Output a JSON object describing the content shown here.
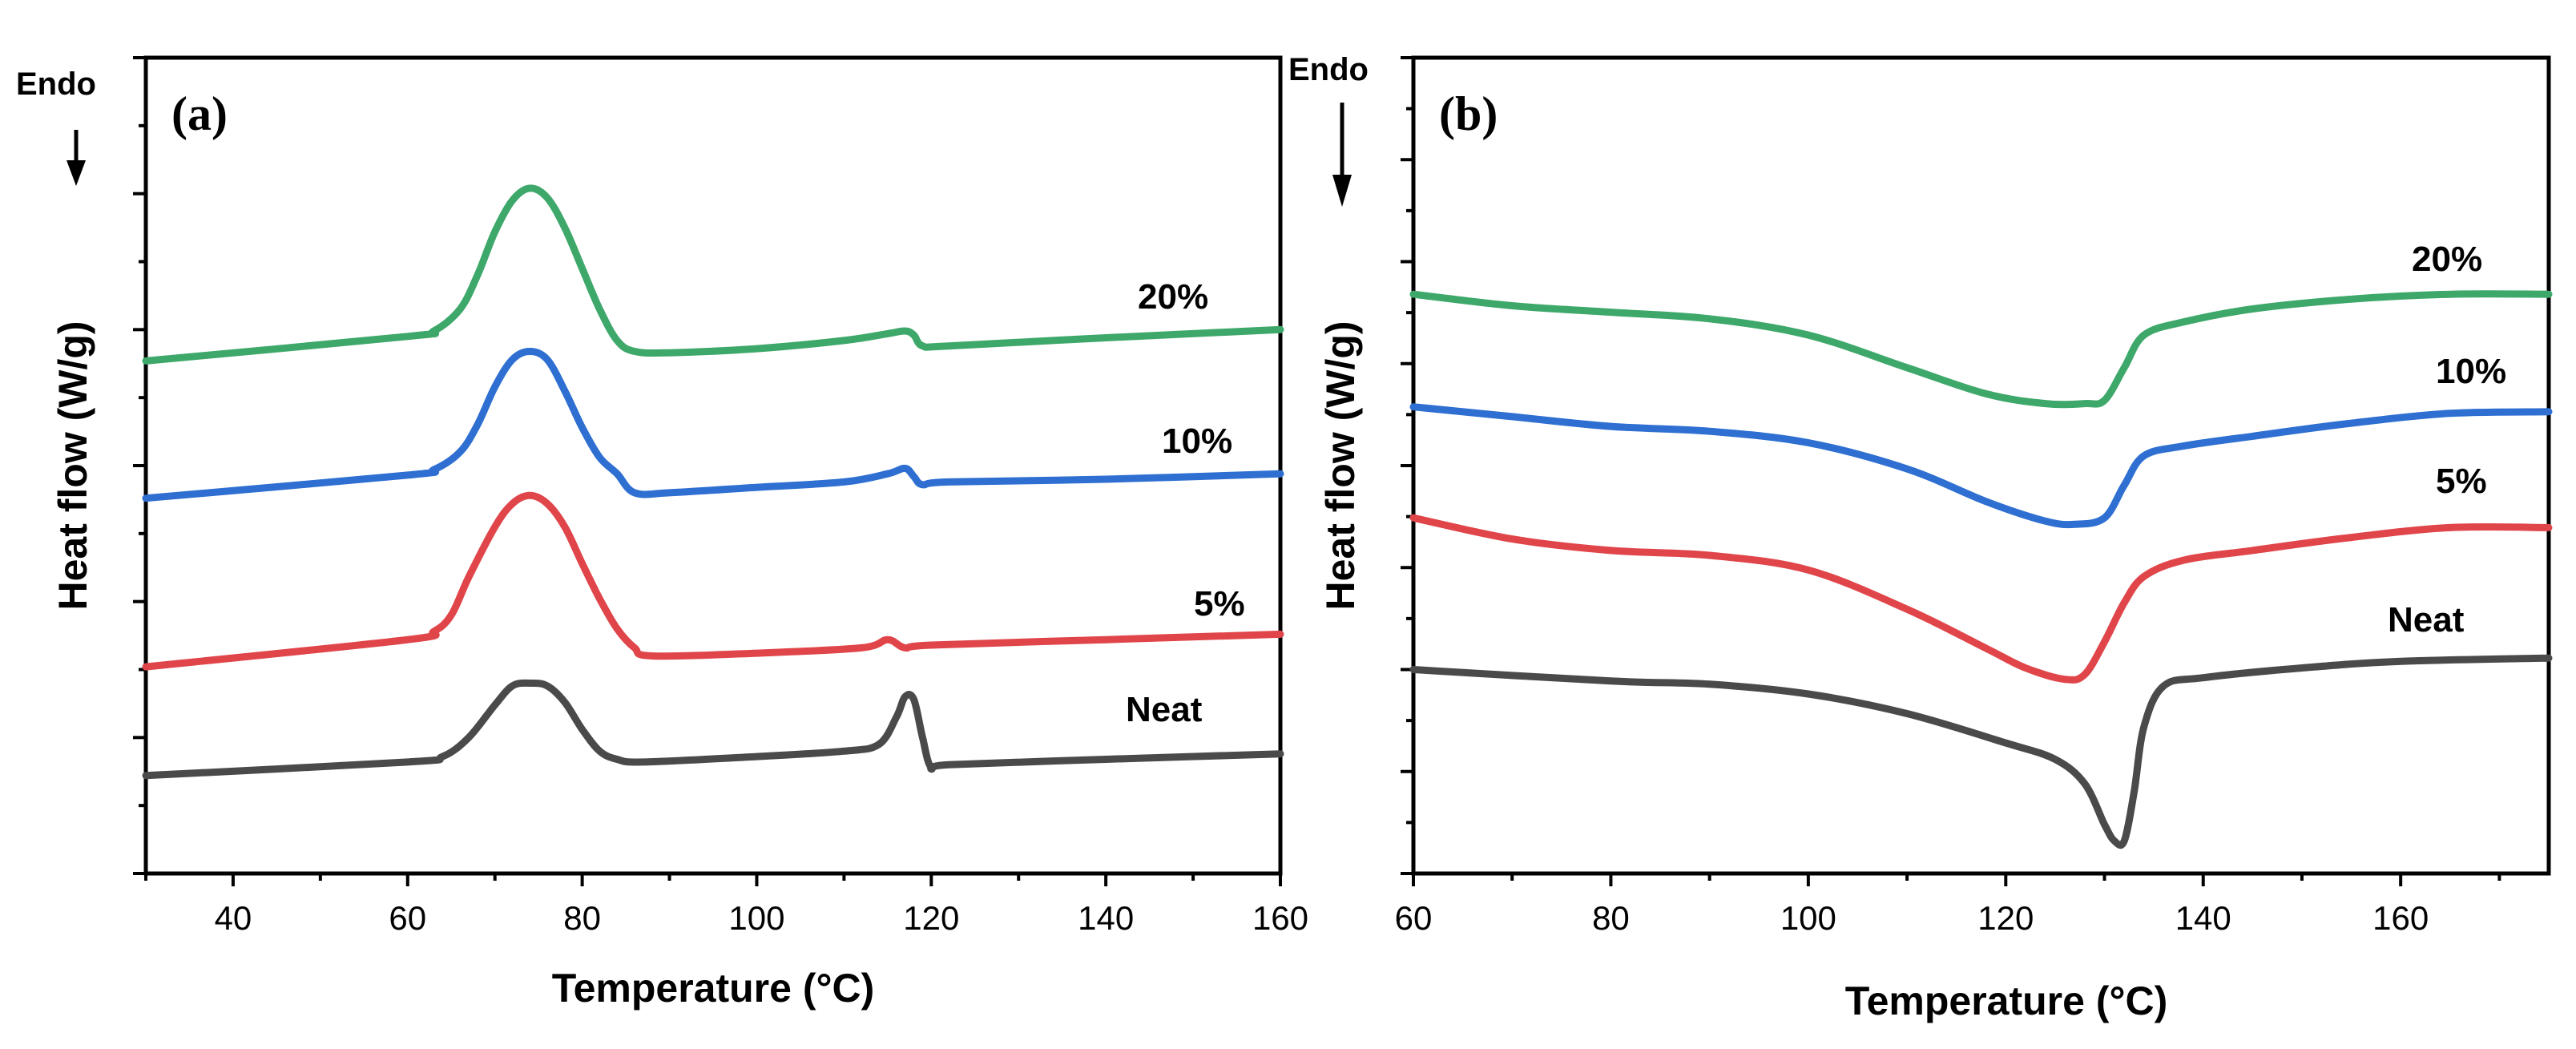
{
  "colors": {
    "Neat": "#4a4a4a",
    "5%": "#e0454a",
    "10%": "#2e6fd1",
    "20%": "#3ea86a"
  },
  "chart_data": [
    {
      "type": "line",
      "panel_label": "(a)",
      "endo_label": "Endo",
      "xlabel": "Temperature (°C)",
      "ylabel": "Heat flow (W/g)",
      "xlim": [
        30,
        160
      ],
      "xticks": [
        40,
        60,
        80,
        100,
        120,
        140,
        160
      ],
      "ylim": [
        0,
        6
      ],
      "y_tick_labels_shown": false,
      "grid": false,
      "series": [
        {
          "name": "Neat",
          "points": [
            [
              30,
              0.72
            ],
            [
              60,
              0.82
            ],
            [
              64,
              0.86
            ],
            [
              67,
              1.0
            ],
            [
              70,
              1.24
            ],
            [
              72,
              1.38
            ],
            [
              74,
              1.4
            ],
            [
              76,
              1.38
            ],
            [
              78,
              1.26
            ],
            [
              80,
              1.06
            ],
            [
              82,
              0.9
            ],
            [
              84,
              0.84
            ],
            [
              87,
              0.82
            ],
            [
              100,
              0.86
            ],
            [
              110,
              0.9
            ],
            [
              114,
              0.95
            ],
            [
              116,
              1.15
            ],
            [
              117,
              1.3
            ],
            [
              118,
              1.28
            ],
            [
              119,
              1.0
            ],
            [
              120,
              0.78
            ],
            [
              122,
              0.8
            ],
            [
              140,
              0.84
            ],
            [
              160,
              0.88
            ]
          ]
        },
        {
          "name": "5%",
          "points": [
            [
              30,
              1.52
            ],
            [
              60,
              1.72
            ],
            [
              63,
              1.78
            ],
            [
              65,
              1.9
            ],
            [
              67,
              2.18
            ],
            [
              70,
              2.55
            ],
            [
              72,
              2.72
            ],
            [
              74,
              2.78
            ],
            [
              76,
              2.72
            ],
            [
              78,
              2.55
            ],
            [
              80,
              2.28
            ],
            [
              82,
              2.02
            ],
            [
              84,
              1.8
            ],
            [
              86,
              1.66
            ],
            [
              88,
              1.6
            ],
            [
              100,
              1.62
            ],
            [
              112,
              1.66
            ],
            [
              115,
              1.72
            ],
            [
              117,
              1.66
            ],
            [
              120,
              1.68
            ],
            [
              140,
              1.72
            ],
            [
              160,
              1.76
            ]
          ]
        },
        {
          "name": "10%",
          "points": [
            [
              30,
              2.76
            ],
            [
              60,
              2.93
            ],
            [
              63,
              2.97
            ],
            [
              66,
              3.1
            ],
            [
              68,
              3.3
            ],
            [
              70,
              3.58
            ],
            [
              72,
              3.78
            ],
            [
              74,
              3.84
            ],
            [
              76,
              3.78
            ],
            [
              78,
              3.55
            ],
            [
              80,
              3.28
            ],
            [
              82,
              3.06
            ],
            [
              84,
              2.94
            ],
            [
              86,
              2.8
            ],
            [
              90,
              2.8
            ],
            [
              100,
              2.84
            ],
            [
              110,
              2.88
            ],
            [
              115,
              2.94
            ],
            [
              117,
              2.98
            ],
            [
              118,
              2.92
            ],
            [
              119,
              2.86
            ],
            [
              122,
              2.88
            ],
            [
              140,
              2.9
            ],
            [
              160,
              2.94
            ]
          ]
        },
        {
          "name": "20%",
          "points": [
            [
              30,
              3.77
            ],
            [
              60,
              3.95
            ],
            [
              63,
              3.99
            ],
            [
              66,
              4.15
            ],
            [
              68,
              4.4
            ],
            [
              70,
              4.72
            ],
            [
              72,
              4.95
            ],
            [
              74,
              5.04
            ],
            [
              76,
              4.97
            ],
            [
              78,
              4.75
            ],
            [
              80,
              4.45
            ],
            [
              82,
              4.15
            ],
            [
              84,
              3.92
            ],
            [
              86,
              3.84
            ],
            [
              90,
              3.83
            ],
            [
              100,
              3.86
            ],
            [
              110,
              3.92
            ],
            [
              115,
              3.97
            ],
            [
              117,
              3.99
            ],
            [
              118,
              3.96
            ],
            [
              119,
              3.88
            ],
            [
              122,
              3.88
            ],
            [
              140,
              3.94
            ],
            [
              160,
              4.0
            ]
          ]
        }
      ],
      "series_labels": [
        "Neat",
        "5%",
        "10%",
        "20%"
      ]
    },
    {
      "type": "line",
      "panel_label": "(b)",
      "endo_label": "Endo",
      "xlabel": "Temperature (°C)",
      "ylabel": "Heat flow (W/g)",
      "xlim": [
        60,
        175
      ],
      "xticks": [
        60,
        80,
        100,
        120,
        140,
        160
      ],
      "ylim": [
        0,
        5
      ],
      "y_tick_labels_shown": false,
      "grid": false,
      "series": [
        {
          "name": "Neat",
          "points": [
            [
              60,
              1.25
            ],
            [
              80,
              1.18
            ],
            [
              90,
              1.16
            ],
            [
              100,
              1.1
            ],
            [
              110,
              0.98
            ],
            [
              120,
              0.8
            ],
            [
              125,
              0.7
            ],
            [
              128,
              0.55
            ],
            [
              130,
              0.3
            ],
            [
              131,
              0.2
            ],
            [
              132,
              0.2
            ],
            [
              133,
              0.5
            ],
            [
              134,
              0.9
            ],
            [
              136,
              1.15
            ],
            [
              140,
              1.2
            ],
            [
              150,
              1.26
            ],
            [
              160,
              1.3
            ],
            [
              175,
              1.32
            ]
          ]
        },
        {
          "name": "5%",
          "points": [
            [
              60,
              2.18
            ],
            [
              70,
              2.05
            ],
            [
              80,
              1.98
            ],
            [
              90,
              1.95
            ],
            [
              100,
              1.86
            ],
            [
              110,
              1.62
            ],
            [
              118,
              1.38
            ],
            [
              122,
              1.26
            ],
            [
              126,
              1.19
            ],
            [
              128,
              1.22
            ],
            [
              130,
              1.42
            ],
            [
              132,
              1.66
            ],
            [
              134,
              1.82
            ],
            [
              138,
              1.92
            ],
            [
              145,
              1.98
            ],
            [
              155,
              2.06
            ],
            [
              165,
              2.12
            ],
            [
              175,
              2.12
            ]
          ]
        },
        {
          "name": "10%",
          "points": [
            [
              60,
              2.86
            ],
            [
              70,
              2.8
            ],
            [
              80,
              2.74
            ],
            [
              90,
              2.71
            ],
            [
              100,
              2.64
            ],
            [
              110,
              2.48
            ],
            [
              118,
              2.28
            ],
            [
              124,
              2.16
            ],
            [
              127,
              2.14
            ],
            [
              130,
              2.18
            ],
            [
              132,
              2.38
            ],
            [
              134,
              2.56
            ],
            [
              138,
              2.62
            ],
            [
              145,
              2.68
            ],
            [
              155,
              2.76
            ],
            [
              165,
              2.82
            ],
            [
              175,
              2.83
            ]
          ]
        },
        {
          "name": "20%",
          "points": [
            [
              60,
              3.55
            ],
            [
              70,
              3.48
            ],
            [
              80,
              3.44
            ],
            [
              90,
              3.4
            ],
            [
              100,
              3.3
            ],
            [
              110,
              3.1
            ],
            [
              118,
              2.94
            ],
            [
              124,
              2.88
            ],
            [
              128,
              2.88
            ],
            [
              130,
              2.9
            ],
            [
              132,
              3.1
            ],
            [
              134,
              3.3
            ],
            [
              138,
              3.38
            ],
            [
              145,
              3.46
            ],
            [
              155,
              3.52
            ],
            [
              165,
              3.55
            ],
            [
              175,
              3.55
            ]
          ]
        }
      ],
      "series_labels": [
        "Neat",
        "5%",
        "10%",
        "20%"
      ]
    }
  ]
}
